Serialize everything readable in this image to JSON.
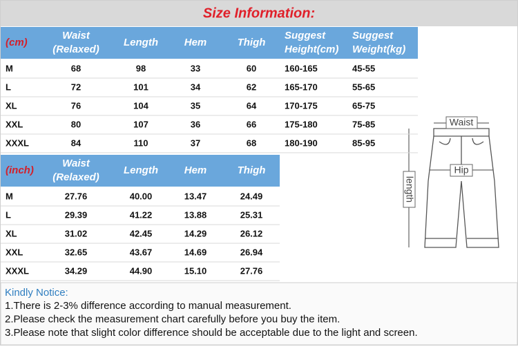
{
  "title": "Size Information:",
  "cm_table": {
    "headers": [
      [
        "(cm)"
      ],
      [
        "Waist",
        "(Relaxed)"
      ],
      [
        "Length"
      ],
      [
        "Hem"
      ],
      [
        "Thigh"
      ],
      [
        "Suggest",
        "Height(cm)"
      ],
      [
        "Suggest",
        "Weight(kg)"
      ]
    ],
    "rows": [
      [
        "M",
        "68",
        "98",
        "33",
        "60",
        "160-165",
        "45-55"
      ],
      [
        "L",
        "72",
        "101",
        "34",
        "62",
        "165-170",
        "55-65"
      ],
      [
        "XL",
        "76",
        "104",
        "35",
        "64",
        "170-175",
        "65-75"
      ],
      [
        "XXL",
        "80",
        "107",
        "36",
        "66",
        "175-180",
        "75-85"
      ],
      [
        "XXXL",
        "84",
        "110",
        "37",
        "68",
        "180-190",
        "85-95"
      ]
    ]
  },
  "inch_table": {
    "headers": [
      [
        "(inch)"
      ],
      [
        "Waist",
        "(Relaxed)"
      ],
      [
        "Length"
      ],
      [
        "Hem"
      ],
      [
        "Thigh"
      ]
    ],
    "rows": [
      [
        "M",
        "27.76",
        "40.00",
        "13.47",
        "24.49"
      ],
      [
        "L",
        "29.39",
        "41.22",
        "13.88",
        "25.31"
      ],
      [
        "XL",
        "31.02",
        "42.45",
        "14.29",
        "26.12"
      ],
      [
        "XXL",
        "32.65",
        "43.67",
        "14.69",
        "26.94"
      ],
      [
        "XXXL",
        "34.29",
        "44.90",
        "15.10",
        "27.76"
      ]
    ]
  },
  "diagram": {
    "waist": "Waist",
    "hip": "Hip",
    "length": "length"
  },
  "notice": {
    "heading": "Kindly Notice:",
    "lines": [
      "1.There is 2-3% difference according to manual measurement.",
      "2.Please check the measurement chart carefully before you buy the item.",
      "3.Please note that slight color difference should be acceptable due to the light and screen."
    ]
  }
}
